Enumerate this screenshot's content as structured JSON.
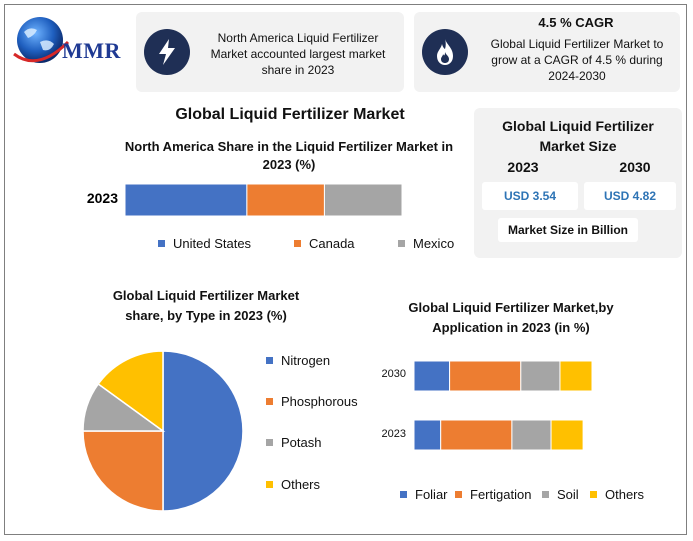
{
  "header": {
    "logo_text": "MMR",
    "card1": {
      "icon": "lightning-icon",
      "text": "North America Liquid Fertilizer Market accounted largest market share in 2023"
    },
    "card2": {
      "icon": "flame-icon",
      "title": "4.5 % CAGR",
      "text": "Global Liquid Fertilizer Market to grow at a CAGR of 4.5 % during 2024-2030"
    }
  },
  "main_title": "Global Liquid Fertilizer Market",
  "market_size_panel": {
    "title": "Global Liquid Fertilizer Market Size",
    "year_2023": "2023",
    "year_2030": "2030",
    "value_2023": "USD 3.54",
    "value_2030": "USD 4.82",
    "footer": "Market Size in Billion"
  },
  "colors": {
    "blue": "#4472c4",
    "orange": "#ed7d31",
    "gray": "#a5a5a5",
    "yellow": "#ffc000",
    "navy": "#1f2f55"
  },
  "chart_data": [
    {
      "type": "bar",
      "orientation": "horizontal",
      "stacked": true,
      "title": "North America Share in the Liquid Fertilizer Market in 2023 (%)",
      "categories": [
        "2023"
      ],
      "series": [
        {
          "name": "United States",
          "values": [
            44
          ]
        },
        {
          "name": "Canada",
          "values": [
            28
          ]
        },
        {
          "name": "Mexico",
          "values": [
            28
          ]
        }
      ],
      "legend": "bottom"
    },
    {
      "type": "pie",
      "title": "Global Liquid Fertilizer Market share, by Type in 2023  (%)",
      "labels": [
        "Nitrogen",
        "Phosphorous",
        "Potash",
        "Others"
      ],
      "values": [
        50,
        25,
        10,
        15
      ],
      "legend": "right"
    },
    {
      "type": "bar",
      "orientation": "horizontal",
      "stacked": true,
      "title": "Global Liquid Fertilizer Market,by Application in 2023 (in %)",
      "categories": [
        "2030",
        "2023"
      ],
      "series": [
        {
          "name": "Foliar",
          "values": [
            20,
            15
          ]
        },
        {
          "name": "Fertigation",
          "values": [
            40,
            40
          ]
        },
        {
          "name": "Soil",
          "values": [
            22,
            22
          ]
        },
        {
          "name": "Others",
          "values": [
            18,
            18
          ]
        }
      ],
      "legend": "bottom"
    }
  ]
}
